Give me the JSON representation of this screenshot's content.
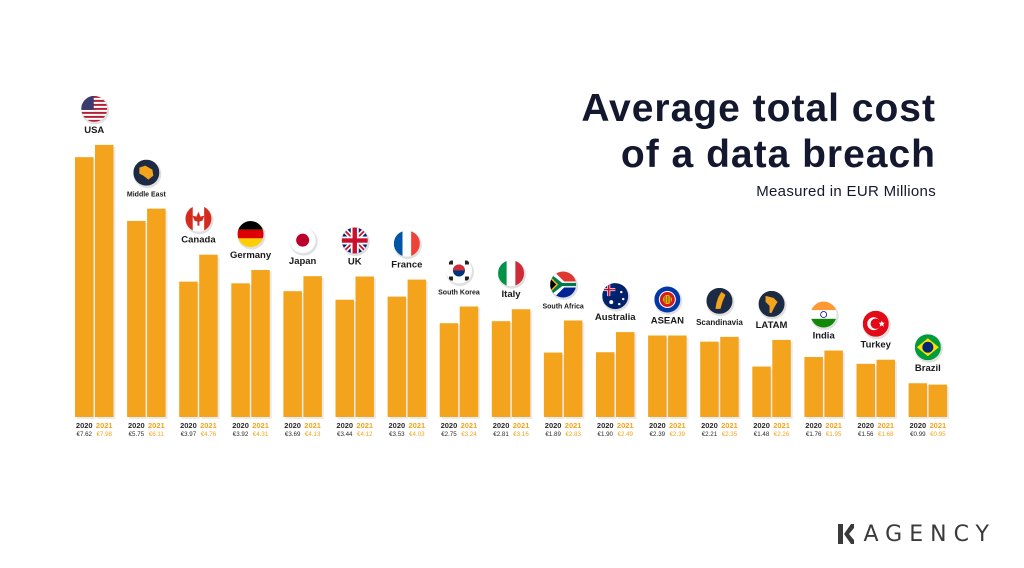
{
  "title_line1": "Average total cost",
  "title_line2": "of a data breach",
  "subtitle": "Measured in EUR Millions",
  "logo_text": "AGENCY",
  "colors": {
    "bar": "#f4a41c",
    "bar_shadow": "#dd8f10",
    "label_2020": "#2a2a2a",
    "label_2021": "#f4a41c",
    "title": "#14182e",
    "badge": "#1d2a44"
  },
  "chart_data": {
    "type": "bar",
    "title": "Average total cost of a data breach",
    "subtitle": "Measured in EUR Millions",
    "categories": [
      "USA",
      "Middle East",
      "Canada",
      "Germany",
      "Japan",
      "UK",
      "France",
      "South Korea",
      "Italy",
      "South Africa",
      "Australia",
      "ASEAN",
      "Scandinavia",
      "LATAM",
      "India",
      "Turkey",
      "Brazil"
    ],
    "flag_icons": [
      "usa-flag-icon",
      "middle-east-map-icon",
      "canada-flag-icon",
      "germany-flag-icon",
      "japan-flag-icon",
      "uk-flag-icon",
      "france-flag-icon",
      "south-korea-flag-icon",
      "italy-flag-icon",
      "south-africa-flag-icon",
      "australia-flag-icon",
      "asean-emblem-icon",
      "scandinavia-map-icon",
      "latam-map-icon",
      "india-flag-icon",
      "turkey-flag-icon",
      "brazil-flag-icon"
    ],
    "series": [
      {
        "name": "2020",
        "values": [
          7.62,
          5.75,
          3.97,
          3.92,
          3.69,
          3.44,
          3.53,
          2.75,
          2.81,
          1.89,
          1.9,
          2.39,
          2.21,
          1.48,
          1.76,
          1.56,
          0.99
        ]
      },
      {
        "name": "2021",
        "values": [
          7.98,
          6.11,
          4.76,
          4.31,
          4.13,
          4.12,
          4.03,
          3.24,
          3.16,
          2.83,
          2.49,
          2.39,
          2.35,
          2.26,
          1.95,
          1.68,
          0.95
        ]
      }
    ],
    "value_labels": {
      "2020": [
        "€7.62",
        "€5.75",
        "€3.97",
        "€3.92",
        "€3.69",
        "€3.44",
        "€3.53",
        "€2.75",
        "€2.81",
        "€1.89",
        "€1.90",
        "€2.39",
        "€2.21",
        "€1.48",
        "€1.76",
        "€1.56",
        "€0.99"
      ],
      "2021": [
        "€7.98",
        "€6.11",
        "€4.76",
        "€4.31",
        "€4.13",
        "€4.12",
        "€4.03",
        "€3.24",
        "€3.16",
        "€2.83",
        "€2.49",
        "€2.39",
        "€2.35",
        "€2.26",
        "€1.95",
        "€1.68",
        "€0.95"
      ]
    },
    "grid": false,
    "legend": "none"
  }
}
